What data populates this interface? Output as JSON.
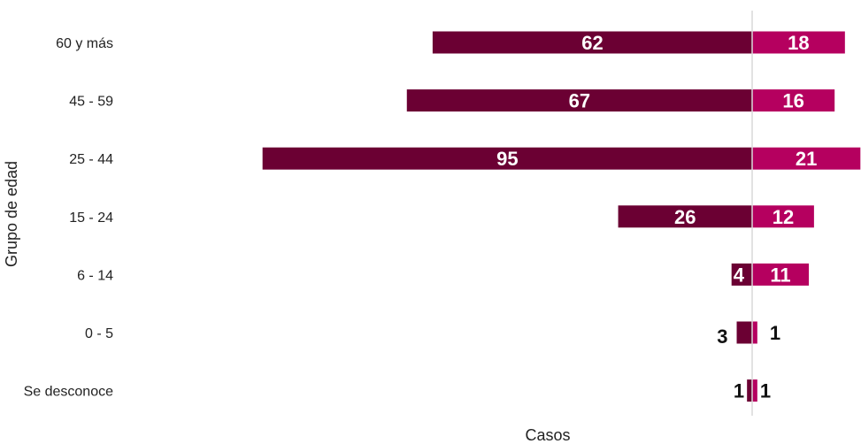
{
  "chart_data": {
    "type": "bar",
    "orientation": "horizontal-diverging",
    "categories": [
      "60 y más",
      "45 - 59",
      "25 - 44",
      "15 - 24",
      "6 - 14",
      "0 - 5",
      "Se desconoce"
    ],
    "series": [
      {
        "values": [
          62,
          67,
          95,
          26,
          4,
          3,
          1
        ],
        "color": "#6b0033",
        "direction": "left"
      },
      {
        "values": [
          18,
          16,
          21,
          12,
          11,
          1,
          1
        ],
        "color": "#b5005f",
        "direction": "right"
      }
    ],
    "xlabel": "Casos",
    "ylabel": "Grupo de edad",
    "grid": false,
    "legend": "none"
  },
  "colors": {
    "divider": "#d9d9d9"
  }
}
